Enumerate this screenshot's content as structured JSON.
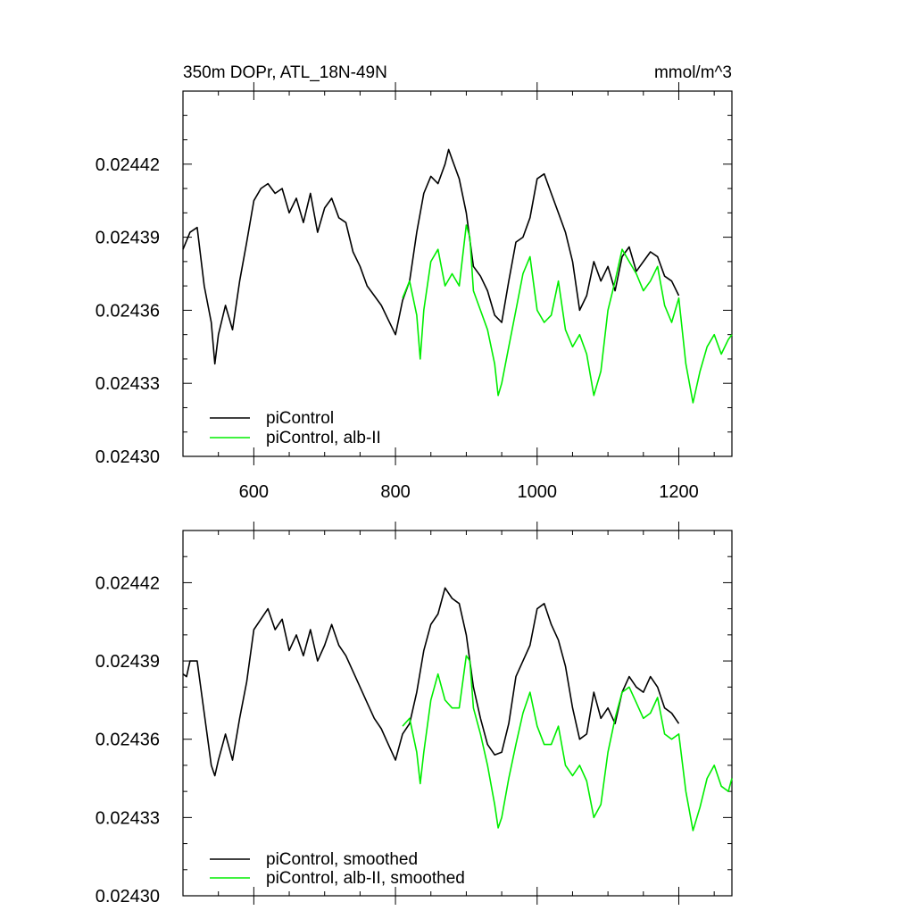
{
  "chart_data": [
    {
      "type": "line",
      "title": "350m DOPr, ATL_18N-49N",
      "units": "mmol/m^3",
      "xlim": [
        500,
        1275
      ],
      "ylim": [
        0.0243,
        0.02445
      ],
      "xticks": [
        600,
        800,
        1000,
        1200
      ],
      "xtick_labels": [
        "600",
        "800",
        "1000",
        "1200"
      ],
      "yticks": [
        0.0243,
        0.02433,
        0.02436,
        0.02439,
        0.02442
      ],
      "ytick_labels": [
        "0.02430",
        "0.02433",
        "0.02436",
        "0.02439",
        "0.02442"
      ],
      "legend_position": "bottom-left",
      "grid": false,
      "series": [
        {
          "name": "piControl",
          "color": "#000000",
          "x": [
            500,
            510,
            520,
            530,
            540,
            545,
            550,
            560,
            570,
            580,
            590,
            600,
            610,
            620,
            630,
            640,
            650,
            660,
            670,
            680,
            690,
            700,
            710,
            720,
            730,
            740,
            750,
            760,
            770,
            780,
            790,
            800,
            810,
            820,
            830,
            840,
            850,
            860,
            870,
            875,
            880,
            890,
            900,
            910,
            920,
            930,
            940,
            950,
            960,
            970,
            980,
            990,
            1000,
            1010,
            1020,
            1030,
            1040,
            1050,
            1060,
            1070,
            1080,
            1090,
            1100,
            1110,
            1120,
            1130,
            1140,
            1150,
            1160,
            1170,
            1180,
            1190,
            1200
          ],
          "y": [
            0.024385,
            0.024392,
            0.024394,
            0.02437,
            0.024355,
            0.024338,
            0.02435,
            0.024362,
            0.024352,
            0.024372,
            0.024388,
            0.024405,
            0.02441,
            0.024412,
            0.024408,
            0.02441,
            0.0244,
            0.024406,
            0.024396,
            0.024408,
            0.024392,
            0.024402,
            0.024406,
            0.024398,
            0.024396,
            0.024384,
            0.024378,
            0.02437,
            0.024366,
            0.024362,
            0.024356,
            0.02435,
            0.024364,
            0.024372,
            0.024392,
            0.024408,
            0.024415,
            0.024412,
            0.02442,
            0.024426,
            0.024422,
            0.024414,
            0.0244,
            0.024378,
            0.024374,
            0.024368,
            0.024358,
            0.024355,
            0.024372,
            0.024388,
            0.02439,
            0.024398,
            0.024414,
            0.024416,
            0.024408,
            0.0244,
            0.024392,
            0.02438,
            0.02436,
            0.024366,
            0.02438,
            0.024372,
            0.024378,
            0.024368,
            0.024382,
            0.024386,
            0.024376,
            0.02438,
            0.024384,
            0.024382,
            0.024374,
            0.024372,
            0.024366
          ]
        },
        {
          "name": "piControl, alb-II",
          "color": "#00ee00",
          "x": [
            810,
            820,
            830,
            835,
            840,
            850,
            860,
            870,
            880,
            890,
            900,
            905,
            910,
            920,
            930,
            940,
            945,
            950,
            960,
            970,
            980,
            990,
            1000,
            1010,
            1020,
            1030,
            1040,
            1050,
            1060,
            1070,
            1080,
            1090,
            1100,
            1110,
            1120,
            1130,
            1140,
            1150,
            1160,
            1170,
            1180,
            1190,
            1200,
            1210,
            1220,
            1230,
            1240,
            1250,
            1260,
            1270,
            1275
          ],
          "y": [
            0.024365,
            0.024372,
            0.024358,
            0.02434,
            0.02436,
            0.02438,
            0.024385,
            0.02437,
            0.024375,
            0.02437,
            0.024395,
            0.02439,
            0.024368,
            0.02436,
            0.024352,
            0.024338,
            0.024325,
            0.02433,
            0.024345,
            0.02436,
            0.024375,
            0.024382,
            0.02436,
            0.024355,
            0.024358,
            0.024372,
            0.024352,
            0.024345,
            0.02435,
            0.024342,
            0.024325,
            0.024335,
            0.02436,
            0.024372,
            0.024385,
            0.02438,
            0.024375,
            0.024368,
            0.024372,
            0.024378,
            0.024362,
            0.024355,
            0.024365,
            0.024338,
            0.024322,
            0.024335,
            0.024345,
            0.02435,
            0.024342,
            0.024348,
            0.02435
          ]
        }
      ]
    },
    {
      "type": "line",
      "xlim": [
        500,
        1275
      ],
      "ylim": [
        0.0243,
        0.02444
      ],
      "xticks": [
        600,
        800,
        1000,
        1200
      ],
      "yticks": [
        0.0243,
        0.02433,
        0.02436,
        0.02439,
        0.02442
      ],
      "ytick_labels": [
        "0.02430",
        "0.02433",
        "0.02436",
        "0.02439",
        "0.02442"
      ],
      "legend_position": "bottom-left",
      "grid": false,
      "series": [
        {
          "name": "piControl, smoothed",
          "color": "#000000",
          "x": [
            500,
            505,
            510,
            520,
            530,
            540,
            545,
            550,
            560,
            570,
            580,
            590,
            600,
            610,
            620,
            630,
            640,
            650,
            660,
            670,
            680,
            690,
            700,
            710,
            720,
            730,
            740,
            750,
            760,
            770,
            780,
            790,
            800,
            810,
            820,
            830,
            840,
            850,
            860,
            870,
            880,
            890,
            900,
            910,
            920,
            930,
            940,
            950,
            960,
            970,
            980,
            990,
            1000,
            1010,
            1020,
            1030,
            1040,
            1050,
            1060,
            1070,
            1080,
            1090,
            1100,
            1110,
            1120,
            1130,
            1140,
            1150,
            1160,
            1170,
            1180,
            1190,
            1200
          ],
          "y": [
            0.024385,
            0.024384,
            0.02439,
            0.02439,
            0.02437,
            0.02435,
            0.024346,
            0.024352,
            0.024362,
            0.024352,
            0.024368,
            0.024382,
            0.024402,
            0.024406,
            0.02441,
            0.024402,
            0.024406,
            0.024394,
            0.0244,
            0.024392,
            0.024402,
            0.02439,
            0.024396,
            0.024404,
            0.024396,
            0.024392,
            0.024386,
            0.02438,
            0.024374,
            0.024368,
            0.024364,
            0.024358,
            0.024352,
            0.024362,
            0.024366,
            0.024378,
            0.024394,
            0.024404,
            0.024408,
            0.024418,
            0.024414,
            0.024412,
            0.0244,
            0.02438,
            0.024368,
            0.024358,
            0.024354,
            0.024355,
            0.024366,
            0.024384,
            0.02439,
            0.024396,
            0.02441,
            0.024412,
            0.024404,
            0.024398,
            0.024388,
            0.024372,
            0.02436,
            0.024362,
            0.024378,
            0.024368,
            0.024372,
            0.024366,
            0.024378,
            0.024384,
            0.02438,
            0.024378,
            0.024384,
            0.02438,
            0.024372,
            0.02437,
            0.024366
          ]
        },
        {
          "name": "piControl, alb-II, smoothed",
          "color": "#00ee00",
          "x": [
            810,
            820,
            830,
            835,
            840,
            850,
            860,
            870,
            880,
            890,
            900,
            905,
            910,
            920,
            930,
            940,
            945,
            950,
            960,
            970,
            980,
            990,
            1000,
            1010,
            1020,
            1030,
            1040,
            1050,
            1060,
            1070,
            1080,
            1090,
            1100,
            1110,
            1120,
            1130,
            1140,
            1150,
            1160,
            1170,
            1180,
            1190,
            1200,
            1210,
            1220,
            1230,
            1240,
            1250,
            1260,
            1270,
            1275
          ],
          "y": [
            0.024365,
            0.024368,
            0.024355,
            0.024343,
            0.024355,
            0.024375,
            0.024385,
            0.024375,
            0.024372,
            0.024372,
            0.024392,
            0.02439,
            0.024372,
            0.024362,
            0.02435,
            0.024335,
            0.024326,
            0.02433,
            0.024345,
            0.024358,
            0.02437,
            0.024378,
            0.024365,
            0.024358,
            0.024358,
            0.024365,
            0.02435,
            0.024346,
            0.02435,
            0.024344,
            0.02433,
            0.024335,
            0.024355,
            0.024368,
            0.024378,
            0.02438,
            0.024374,
            0.024368,
            0.02437,
            0.024376,
            0.024362,
            0.02436,
            0.024362,
            0.02434,
            0.024325,
            0.024334,
            0.024345,
            0.02435,
            0.024342,
            0.02434,
            0.024345
          ]
        }
      ]
    }
  ]
}
